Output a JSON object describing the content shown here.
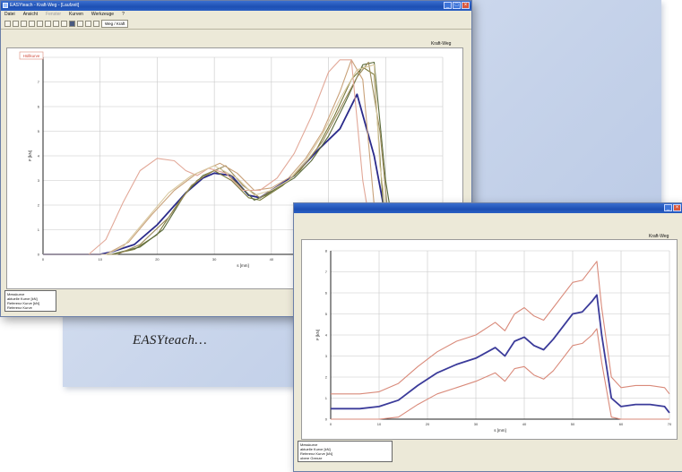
{
  "caption": "EASYteach…",
  "window1": {
    "title": "EASYteach - Kraft-Weg - [Laufzeit]",
    "menu": [
      "Datei",
      "Ansicht",
      "Fenster",
      "Kurven",
      "Werkzeuge",
      "?"
    ],
    "toolbar_field": "Weg / Kraft",
    "panel_label": "Kraft-Weg",
    "legend_tag": "Hüllkurve",
    "y_axis_label": "F [kN]",
    "x_axis_label": "s [mm]",
    "legend_lines": [
      "Messkurve",
      "aktuelle Kurve [kN]",
      "Referenz Kurve [kN]",
      "Referenz Kurve"
    ],
    "colors": {
      "highlight": "#2a2a8a",
      "tolerance": "#d98a7a"
    }
  },
  "window2": {
    "panel_label": "Kraft-Weg",
    "x_axis_label": "s [mm]",
    "y_axis_label": "F [kN]",
    "legend_lines": [
      "Messkurve",
      "aktuelle Kurve [kN]",
      "Referenz Kurve [kN]",
      "obere Grenze"
    ],
    "colors": {
      "mean": "#3b3b9a",
      "tolerance": "#d98a7a"
    }
  },
  "chart_data": [
    {
      "type": "line",
      "xlim": [
        0,
        70
      ],
      "ylim": [
        0,
        8
      ],
      "grid": true,
      "xlabel": "s [mm]",
      "ylabel": "F [kN]",
      "series": [
        {
          "color": "#2a2a8a",
          "x": [
            0,
            10,
            12,
            16,
            20,
            25,
            28,
            30,
            33,
            36,
            38,
            40,
            42,
            44,
            46,
            48,
            52,
            55,
            58,
            61,
            63,
            65,
            70
          ],
          "y": [
            0,
            0,
            0.1,
            0.4,
            1.2,
            2.5,
            3.1,
            3.3,
            3.2,
            2.4,
            2.3,
            2.6,
            2.9,
            3.2,
            3.7,
            4.2,
            5.1,
            6.5,
            4.0,
            0.3,
            0.1,
            0.1,
            0.2
          ]
        },
        {
          "color": "#7a7a3a",
          "x": [
            0,
            12,
            16,
            20,
            24,
            27,
            30,
            33,
            36,
            38,
            40,
            42,
            45,
            48,
            51,
            54,
            56,
            58,
            60,
            62,
            70
          ],
          "y": [
            0,
            0,
            0.2,
            0.8,
            2.2,
            3.0,
            3.4,
            3.0,
            2.3,
            2.2,
            2.5,
            2.8,
            3.4,
            4.3,
            5.6,
            7.1,
            7.6,
            7.3,
            0.6,
            0.1,
            0.1
          ]
        },
        {
          "color": "#5a6a3a",
          "x": [
            0,
            12,
            17,
            21,
            25,
            28,
            31,
            34,
            37,
            39,
            41,
            44,
            47,
            50,
            53,
            56,
            58,
            60,
            62,
            70
          ],
          "y": [
            0,
            0,
            0.3,
            1.0,
            2.5,
            3.2,
            3.5,
            2.9,
            2.2,
            2.4,
            2.7,
            3.1,
            3.8,
            4.8,
            6.2,
            7.7,
            7.8,
            3.0,
            0.1,
            0.1
          ]
        },
        {
          "color": "#9a8a5a",
          "x": [
            0,
            13,
            17,
            22,
            26,
            29,
            32,
            35,
            38,
            40,
            43,
            46,
            49,
            52,
            55,
            57,
            59,
            61,
            70
          ],
          "y": [
            0,
            0,
            0.4,
            1.5,
            2.8,
            3.3,
            3.6,
            2.8,
            2.3,
            2.6,
            3.0,
            3.7,
            4.6,
            5.9,
            7.2,
            7.8,
            5.0,
            0.2,
            0.1
          ]
        },
        {
          "color": "#c9a27a",
          "x": [
            0,
            11,
            15,
            19,
            23,
            27,
            31,
            34,
            37,
            40,
            43,
            46,
            49,
            52,
            54,
            56,
            58,
            60,
            70
          ],
          "y": [
            0,
            0,
            0.5,
            1.6,
            2.6,
            3.3,
            3.7,
            3.3,
            2.6,
            2.7,
            3.1,
            3.9,
            5.0,
            6.6,
            7.9,
            7.1,
            2.0,
            0.2,
            0.1
          ]
        },
        {
          "color": "#e2a898",
          "x": [
            0,
            8,
            11,
            14,
            17,
            20,
            23,
            25,
            27,
            29,
            32,
            35,
            38,
            41,
            44,
            47,
            50,
            52,
            54,
            56,
            58,
            70
          ],
          "y": [
            0,
            0,
            0.6,
            2.1,
            3.4,
            3.9,
            3.8,
            3.4,
            3.2,
            3.5,
            3.3,
            2.6,
            2.6,
            3.1,
            4.1,
            5.6,
            7.4,
            7.9,
            7.9,
            3.0,
            0.2,
            0.1
          ]
        },
        {
          "color": "#d9c9a0",
          "x": [
            0,
            11,
            14,
            18,
            22,
            26,
            30,
            34,
            37,
            40,
            43,
            46,
            49,
            52,
            55,
            58,
            59,
            61,
            70
          ],
          "y": [
            0,
            0,
            0.3,
            1.4,
            2.5,
            3.2,
            3.6,
            3.1,
            2.4,
            2.6,
            3.0,
            3.8,
            4.9,
            6.3,
            7.5,
            7.7,
            3.6,
            0.3,
            0.1
          ]
        }
      ]
    },
    {
      "type": "line",
      "xlim": [
        0,
        70
      ],
      "ylim": [
        0,
        8
      ],
      "grid": true,
      "xlabel": "s [mm]",
      "ylabel": "F [kN]",
      "series": [
        {
          "color": "#3b3b9a",
          "x": [
            0,
            6,
            10,
            14,
            18,
            22,
            26,
            30,
            34,
            36,
            38,
            40,
            42,
            44,
            46,
            48,
            50,
            52,
            54,
            55,
            56,
            58,
            60,
            63,
            66,
            69,
            70
          ],
          "y": [
            0.5,
            0.5,
            0.6,
            0.9,
            1.6,
            2.2,
            2.6,
            2.9,
            3.4,
            3.0,
            3.7,
            3.9,
            3.5,
            3.3,
            3.8,
            4.4,
            5.0,
            5.1,
            5.6,
            5.9,
            4.0,
            1.0,
            0.6,
            0.7,
            0.7,
            0.6,
            0.3
          ]
        },
        {
          "color": "#d98a7a",
          "x": [
            0,
            6,
            10,
            14,
            18,
            22,
            26,
            30,
            34,
            36,
            38,
            40,
            42,
            44,
            46,
            48,
            50,
            52,
            54,
            55,
            56,
            58,
            60,
            63,
            66,
            69,
            70
          ],
          "y": [
            1.2,
            1.2,
            1.3,
            1.7,
            2.5,
            3.2,
            3.7,
            4.0,
            4.6,
            4.2,
            5.0,
            5.3,
            4.9,
            4.7,
            5.3,
            5.9,
            6.5,
            6.6,
            7.2,
            7.5,
            5.3,
            2.0,
            1.5,
            1.6,
            1.6,
            1.5,
            1.2
          ]
        },
        {
          "color": "#d98a7a",
          "x": [
            0,
            6,
            10,
            14,
            18,
            22,
            26,
            30,
            34,
            36,
            38,
            40,
            42,
            44,
            46,
            48,
            50,
            52,
            54,
            55,
            56,
            58,
            60,
            63,
            66,
            69,
            70
          ],
          "y": [
            0,
            0,
            0,
            0.1,
            0.7,
            1.2,
            1.5,
            1.8,
            2.2,
            1.8,
            2.4,
            2.5,
            2.1,
            1.9,
            2.3,
            2.9,
            3.5,
            3.6,
            4.0,
            4.3,
            2.7,
            0.1,
            0,
            0,
            0,
            0,
            0
          ]
        }
      ]
    }
  ]
}
